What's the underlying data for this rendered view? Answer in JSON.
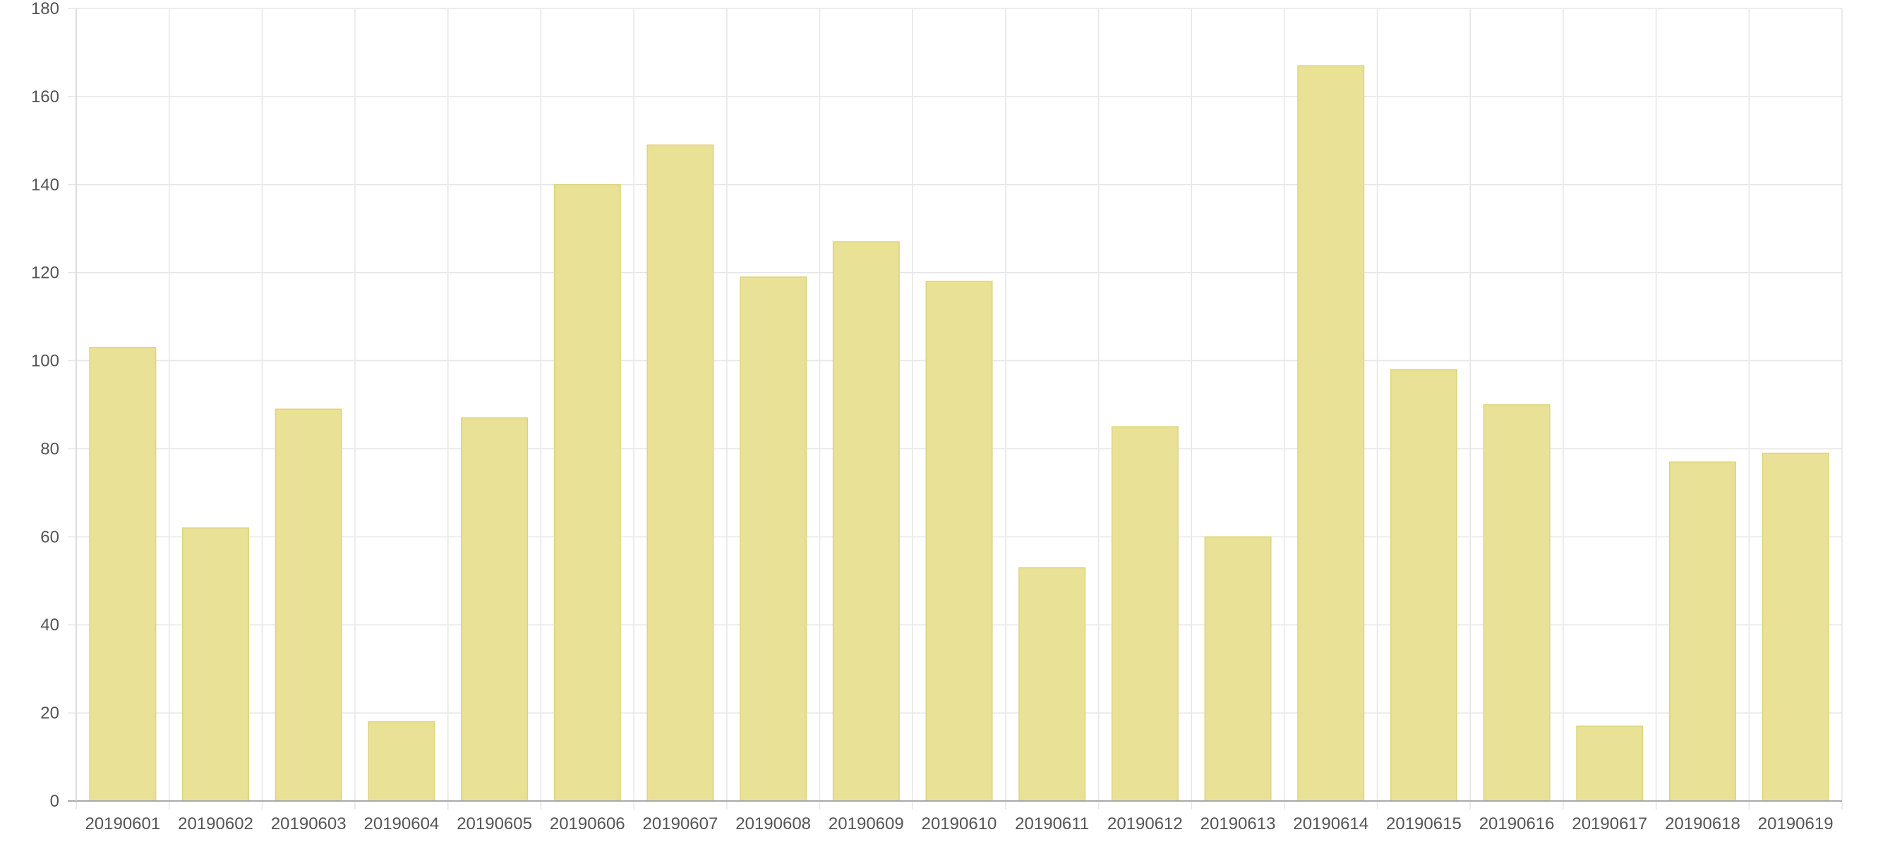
{
  "chart_data": {
    "type": "bar",
    "title": "",
    "xlabel": "",
    "ylabel": "",
    "categories": [
      "20190601",
      "20190602",
      "20190603",
      "20190604",
      "20190605",
      "20190606",
      "20190607",
      "20190608",
      "20190609",
      "20190610",
      "20190611",
      "20190612",
      "20190613",
      "20190614",
      "20190615",
      "20190616",
      "20190617",
      "20190618",
      "20190619"
    ],
    "values": [
      103,
      62,
      89,
      18,
      87,
      140,
      149,
      119,
      127,
      118,
      53,
      85,
      60,
      167,
      98,
      90,
      17,
      77,
      79
    ],
    "ylim": [
      0,
      180
    ],
    "yticks": [
      0,
      20,
      40,
      60,
      80,
      100,
      120,
      140,
      160,
      180
    ],
    "grid": true,
    "legend": "none",
    "colors": {
      "bar_fill": "#e8e196",
      "bar_border": "#ddd57d",
      "grid": "#e6e6e6",
      "axis": "#a9a9a9",
      "tick_text": "#555555"
    }
  }
}
